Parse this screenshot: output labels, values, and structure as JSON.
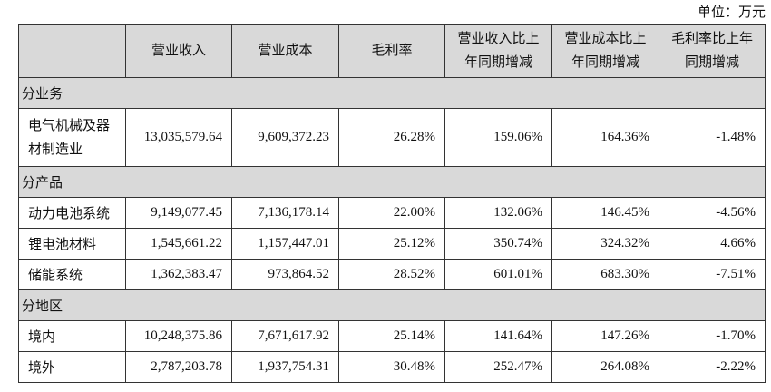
{
  "unit_label": "单位：万元",
  "headers": [
    "",
    "营业收入",
    "营业成本",
    "毛利率",
    "营业收入比上年同期增减",
    "营业成本比上年同期增减",
    "毛利率比上年同期增减"
  ],
  "sections": [
    {
      "title": "分业务",
      "rows": [
        {
          "name": "电气机械及器材制造业",
          "values": [
            "13,035,579.64",
            "9,609,372.23",
            "26.28%",
            "159.06%",
            "164.36%",
            "-1.48%"
          ]
        }
      ]
    },
    {
      "title": "分产品",
      "rows": [
        {
          "name": "动力电池系统",
          "values": [
            "9,149,077.45",
            "7,136,178.14",
            "22.00%",
            "132.06%",
            "146.45%",
            "-4.56%"
          ]
        },
        {
          "name": "锂电池材料",
          "values": [
            "1,545,661.22",
            "1,157,447.01",
            "25.12%",
            "350.74%",
            "324.32%",
            "4.66%"
          ]
        },
        {
          "name": "储能系统",
          "values": [
            "1,362,383.47",
            "973,864.52",
            "28.52%",
            "601.01%",
            "683.30%",
            "-7.51%"
          ]
        }
      ]
    },
    {
      "title": "分地区",
      "rows": [
        {
          "name": "境内",
          "values": [
            "10,248,375.86",
            "7,671,617.92",
            "25.14%",
            "141.64%",
            "147.26%",
            "-1.70%"
          ]
        },
        {
          "name": "境外",
          "values": [
            "2,787,203.78",
            "1,937,754.31",
            "30.48%",
            "252.47%",
            "264.08%",
            "-2.22%"
          ]
        }
      ]
    }
  ]
}
